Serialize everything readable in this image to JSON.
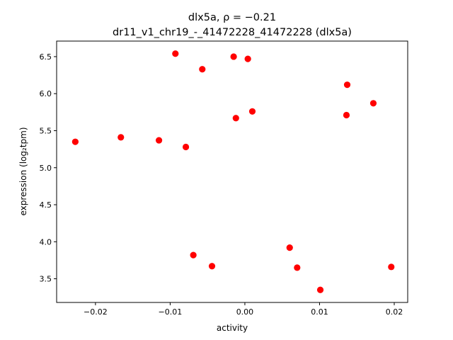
{
  "chart_data": {
    "type": "scatter",
    "title_line1": "dlx5a, ρ = −0.21",
    "title_line2": "dr11_v1_chr19_-_41472228_41472228 (dlx5a)",
    "xlabel": "activity",
    "ylabel": "expression (log₂tpm)",
    "xlim": [
      -0.0252,
      0.0218
    ],
    "ylim": [
      3.18,
      6.71
    ],
    "x_ticks": [
      -0.02,
      -0.01,
      0.0,
      0.01,
      0.02
    ],
    "x_tick_labels": [
      "−0.02",
      "−0.01",
      "0.00",
      "0.01",
      "0.02"
    ],
    "y_ticks": [
      3.5,
      4.0,
      4.5,
      5.0,
      5.5,
      6.0,
      6.5
    ],
    "y_tick_labels": [
      "3.5",
      "4.0",
      "4.5",
      "5.0",
      "5.5",
      "6.0",
      "6.5"
    ],
    "grid": false,
    "marker_color": "#ff0000",
    "points": [
      {
        "x": -0.0227,
        "y": 5.35
      },
      {
        "x": -0.0166,
        "y": 5.41
      },
      {
        "x": -0.0115,
        "y": 5.37
      },
      {
        "x": -0.0079,
        "y": 5.28
      },
      {
        "x": -0.0093,
        "y": 6.54
      },
      {
        "x": -0.0057,
        "y": 6.33
      },
      {
        "x": -0.0015,
        "y": 6.5
      },
      {
        "x": 0.0004,
        "y": 6.47
      },
      {
        "x": -0.0012,
        "y": 5.67
      },
      {
        "x": 0.001,
        "y": 5.76
      },
      {
        "x": 0.0137,
        "y": 6.12
      },
      {
        "x": 0.0136,
        "y": 5.71
      },
      {
        "x": 0.0172,
        "y": 5.87
      },
      {
        "x": -0.0069,
        "y": 3.82
      },
      {
        "x": -0.0044,
        "y": 3.67
      },
      {
        "x": 0.006,
        "y": 3.92
      },
      {
        "x": 0.007,
        "y": 3.65
      },
      {
        "x": 0.0101,
        "y": 3.35
      },
      {
        "x": 0.0196,
        "y": 3.66
      }
    ]
  }
}
